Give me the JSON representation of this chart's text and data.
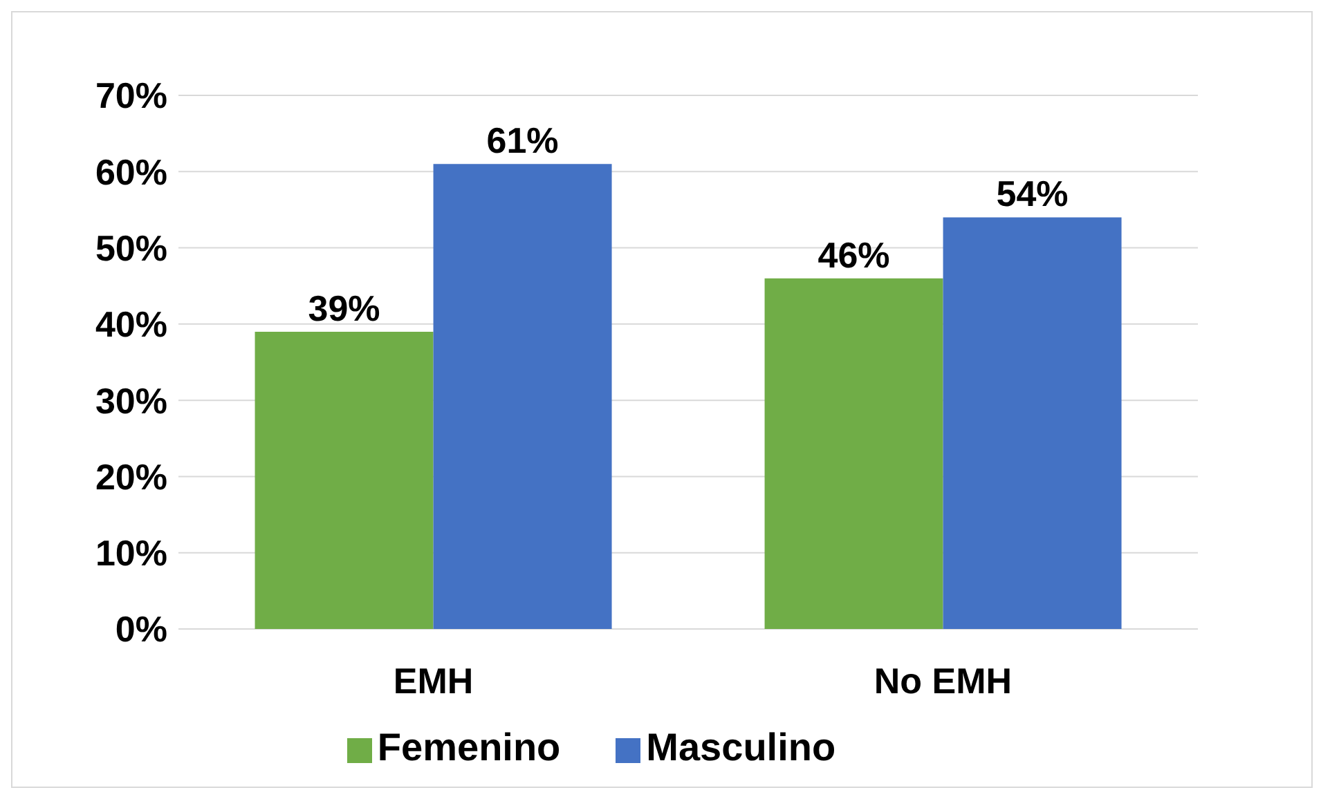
{
  "chart_data": {
    "type": "bar",
    "categories": [
      "EMH",
      "No EMH"
    ],
    "series": [
      {
        "name": "Femenino",
        "color": "#70ad47",
        "values": [
          39,
          46
        ],
        "value_labels": [
          "39%",
          "46%"
        ]
      },
      {
        "name": "Masculino",
        "color": "#4472c4",
        "values": [
          61,
          54
        ],
        "value_labels": [
          "61%",
          "54%"
        ]
      }
    ],
    "ylim": [
      0,
      70
    ],
    "yticks": [
      {
        "value": 0,
        "label": "0%"
      },
      {
        "value": 10,
        "label": "10%"
      },
      {
        "value": 20,
        "label": "20%"
      },
      {
        "value": 30,
        "label": "30%"
      },
      {
        "value": 40,
        "label": "40%"
      },
      {
        "value": 50,
        "label": "50%"
      },
      {
        "value": 60,
        "label": "60%"
      },
      {
        "value": 70,
        "label": "70%"
      }
    ],
    "grid": "y",
    "legend": "bottom"
  }
}
